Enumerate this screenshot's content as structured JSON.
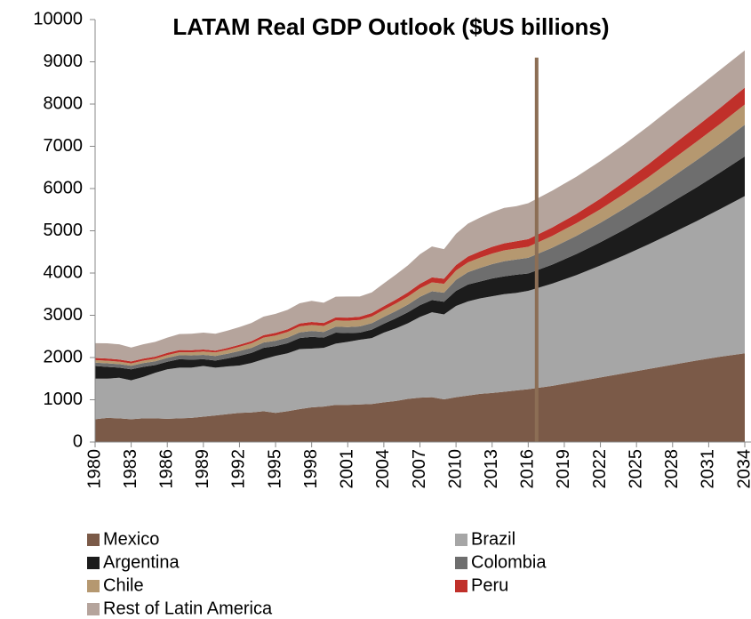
{
  "chart_data": {
    "type": "stacked_area",
    "title": "LATAM Real GDP Outlook ($US billions)",
    "x": [
      1980,
      1981,
      1982,
      1983,
      1984,
      1985,
      1986,
      1987,
      1988,
      1989,
      1990,
      1991,
      1992,
      1993,
      1994,
      1995,
      1996,
      1997,
      1998,
      1999,
      2000,
      2001,
      2002,
      2003,
      2004,
      2005,
      2006,
      2007,
      2008,
      2009,
      2010,
      2011,
      2012,
      2013,
      2014,
      2015,
      2016,
      2018,
      2020,
      2022,
      2024,
      2026,
      2028,
      2030,
      2032,
      2034
    ],
    "xlim": [
      1980,
      2034
    ],
    "xticks": [
      1980,
      1983,
      1986,
      1989,
      1992,
      1995,
      1998,
      2001,
      2004,
      2007,
      2010,
      2013,
      2016,
      2019,
      2022,
      2025,
      2028,
      2031,
      2034
    ],
    "ylim": [
      0,
      10000
    ],
    "yticks": [
      0,
      1000,
      2000,
      3000,
      4000,
      5000,
      6000,
      7000,
      8000,
      9000,
      10000
    ],
    "reference_line": {
      "x": 2016.7,
      "top": 9100,
      "color": "#8c6e55"
    },
    "series": [
      {
        "name": "Mexico",
        "color": "#7b5a48",
        "values": [
          540,
          570,
          560,
          540,
          560,
          560,
          550,
          560,
          570,
          600,
          630,
          660,
          690,
          700,
          730,
          690,
          730,
          780,
          820,
          840,
          880,
          880,
          890,
          900,
          940,
          970,
          1020,
          1050,
          1060,
          1010,
          1060,
          1100,
          1140,
          1160,
          1190,
          1220,
          1250,
          1330,
          1430,
          1530,
          1630,
          1730,
          1830,
          1930,
          2020,
          2100
        ]
      },
      {
        "name": "Brazil",
        "color": "#a6a6a6",
        "values": [
          960,
          930,
          960,
          920,
          980,
          1080,
          1170,
          1200,
          1190,
          1200,
          1130,
          1130,
          1120,
          1170,
          1230,
          1350,
          1370,
          1420,
          1390,
          1390,
          1450,
          1490,
          1530,
          1560,
          1650,
          1720,
          1790,
          1910,
          2010,
          2010,
          2160,
          2230,
          2260,
          2290,
          2310,
          2310,
          2330,
          2420,
          2520,
          2650,
          2790,
          2950,
          3120,
          3300,
          3500,
          3720
        ]
      },
      {
        "name": "Argentina",
        "color": "#1c1c1c",
        "values": [
          300,
          280,
          240,
          260,
          240,
          180,
          180,
          200,
          190,
          160,
          170,
          190,
          230,
          240,
          270,
          230,
          240,
          260,
          280,
          240,
          260,
          210,
          170,
          200,
          210,
          240,
          260,
          280,
          290,
          300,
          360,
          400,
          400,
          420,
          420,
          430,
          410,
          450,
          500,
          550,
          610,
          670,
          740,
          800,
          870,
          940
        ]
      },
      {
        "name": "Colombia",
        "color": "#6e6e6e",
        "values": [
          80,
          82,
          84,
          85,
          88,
          90,
          93,
          96,
          100,
          103,
          106,
          110,
          114,
          118,
          124,
          128,
          132,
          136,
          138,
          136,
          140,
          142,
          146,
          152,
          160,
          170,
          182,
          196,
          208,
          214,
          260,
          290,
          320,
          340,
          360,
          360,
          370,
          400,
          430,
          460,
          500,
          540,
          590,
          640,
          690,
          750
        ]
      },
      {
        "name": "Chile",
        "color": "#b59870",
        "values": [
          60,
          62,
          58,
          56,
          58,
          60,
          64,
          68,
          74,
          80,
          84,
          90,
          100,
          108,
          116,
          124,
          132,
          140,
          144,
          142,
          148,
          150,
          154,
          160,
          170,
          180,
          190,
          200,
          210,
          210,
          220,
          232,
          242,
          250,
          256,
          260,
          262,
          280,
          300,
          320,
          350,
          380,
          410,
          440,
          460,
          480
        ]
      },
      {
        "name": "Peru",
        "color": "#c0302a",
        "values": [
          50,
          52,
          50,
          46,
          48,
          50,
          54,
          52,
          50,
          46,
          44,
          46,
          48,
          52,
          58,
          62,
          64,
          68,
          70,
          70,
          72,
          72,
          76,
          80,
          86,
          92,
          100,
          110,
          120,
          122,
          130,
          140,
          150,
          160,
          166,
          172,
          180,
          200,
          220,
          250,
          280,
          310,
          340,
          360,
          380,
          400
        ]
      },
      {
        "name": "Rest of Latin America",
        "color": "#b5a49c",
        "values": [
          350,
          360,
          360,
          330,
          340,
          350,
          360,
          380,
          390,
          400,
          400,
          410,
          420,
          430,
          440,
          450,
          460,
          480,
          500,
          480,
          490,
          500,
          480,
          490,
          540,
          590,
          640,
          700,
          730,
          700,
          740,
          780,
          800,
          820,
          840,
          830,
          850,
          870,
          880,
          890,
          890,
          900,
          900,
          900,
          900,
          880
        ]
      }
    ]
  }
}
